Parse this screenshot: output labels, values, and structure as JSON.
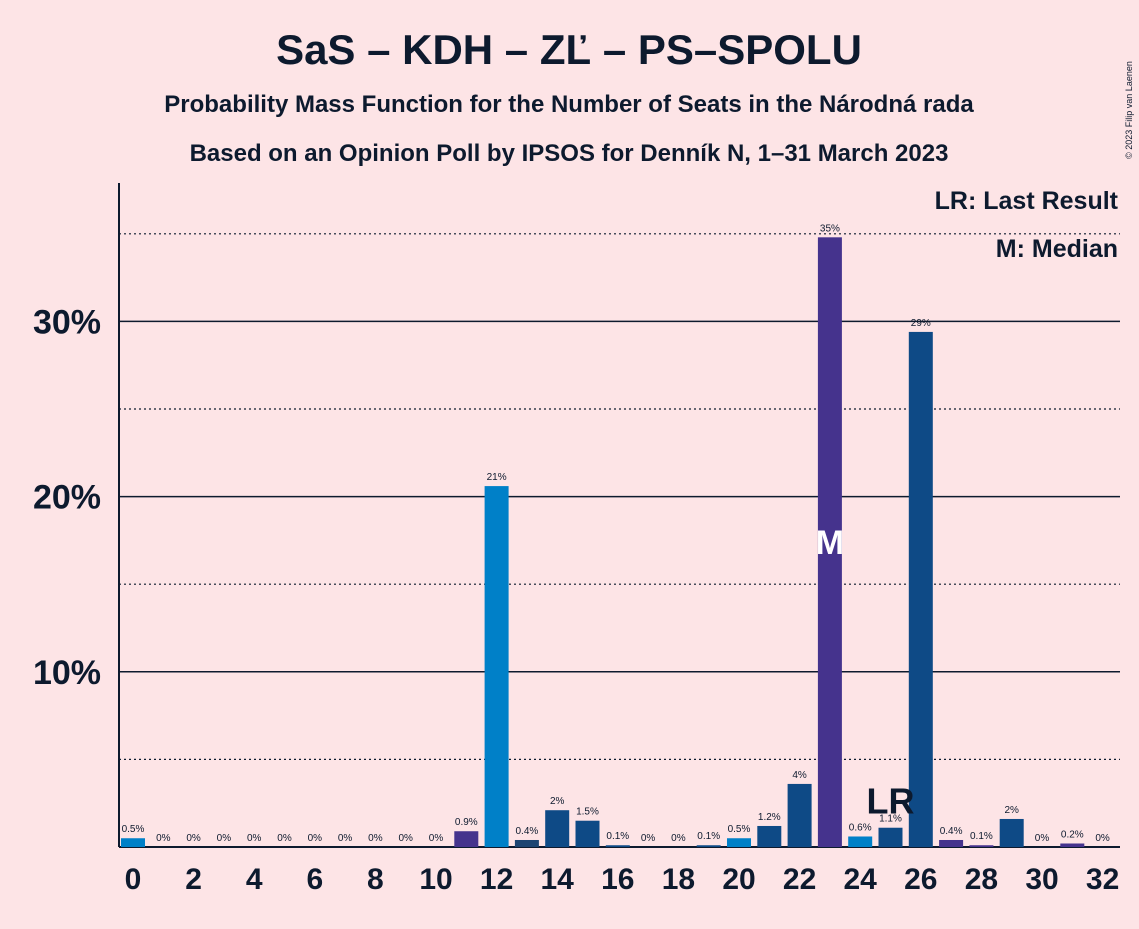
{
  "chart_data": {
    "type": "bar",
    "title": "SaS – KDH – ZĽ – PS–SPOLU",
    "subtitle": "Probability Mass Function for the Number of Seats in the Národná rada",
    "subtitle2": "Based on an Opinion Poll by IPSOS for Denník N, 1–31 March 2023",
    "copyright": "© 2023 Filip van Laenen",
    "categories": [
      "0",
      null,
      "2",
      null,
      "4",
      null,
      "6",
      null,
      "8",
      null,
      "10",
      null,
      "12",
      null,
      "14",
      null,
      "16",
      null,
      "18",
      null,
      "20",
      null,
      "22",
      null,
      "24",
      null,
      "26",
      null,
      "28",
      null,
      "30",
      null,
      "32"
    ],
    "values": [
      0.5,
      0,
      0,
      0,
      0,
      0,
      0,
      0,
      0,
      0,
      0,
      0.9,
      20.6,
      0.4,
      2.1,
      1.5,
      0.1,
      0,
      0,
      0.1,
      0.5,
      1.2,
      3.6,
      34.8,
      0.6,
      1.1,
      29.4,
      0.4,
      0.1,
      1.6,
      0,
      0.2,
      0
    ],
    "value_labels": [
      "0.5%",
      "0%",
      "0%",
      "0%",
      "0%",
      "0%",
      "0%",
      "0%",
      "0%",
      "0%",
      "0%",
      "0.9%",
      "21%",
      "0.4%",
      "2%",
      "1.5%",
      "0.1%",
      "0%",
      "0%",
      "0.1%",
      "0.5%",
      "1.2%",
      "4%",
      "35%",
      "0.6%",
      "1.1%",
      "29%",
      "0.4%",
      "0.1%",
      "2%",
      "0%",
      "0.2%",
      "0%"
    ],
    "colors": [
      "#0080c8",
      "#0080c8",
      "#0080c8",
      "#0080c8",
      "#0080c8",
      "#0080c8",
      "#0080c8",
      "#0080c8",
      "#0080c8",
      "#0080c8",
      "#0080c8",
      "#45338d",
      "#0080c8",
      "#1d4472",
      "#0e4a86",
      "#0e4a86",
      "#0e4a86",
      "#0e4a86",
      "#0e4a86",
      "#0e4a86",
      "#0080c8",
      "#0e4a86",
      "#0e4a86",
      "#45338d",
      "#0080c8",
      "#0e4a86",
      "#0e4a86",
      "#45338d",
      "#45338d",
      "#0e4a86",
      "#0e4a86",
      "#45338d",
      "#0e4a86"
    ],
    "ylim": [
      0,
      37.9
    ],
    "yticks": [
      {
        "value": 10,
        "label": "10%"
      },
      {
        "value": 20,
        "label": "20%"
      },
      {
        "value": 30,
        "label": "30%"
      }
    ],
    "minor_yticks": [
      5,
      15,
      25,
      35
    ],
    "annotations": [
      {
        "text": "M",
        "x": 23
      },
      {
        "text": "LR",
        "x": 25
      }
    ],
    "legend": [
      "LR: Last Result",
      "M: Median"
    ]
  }
}
